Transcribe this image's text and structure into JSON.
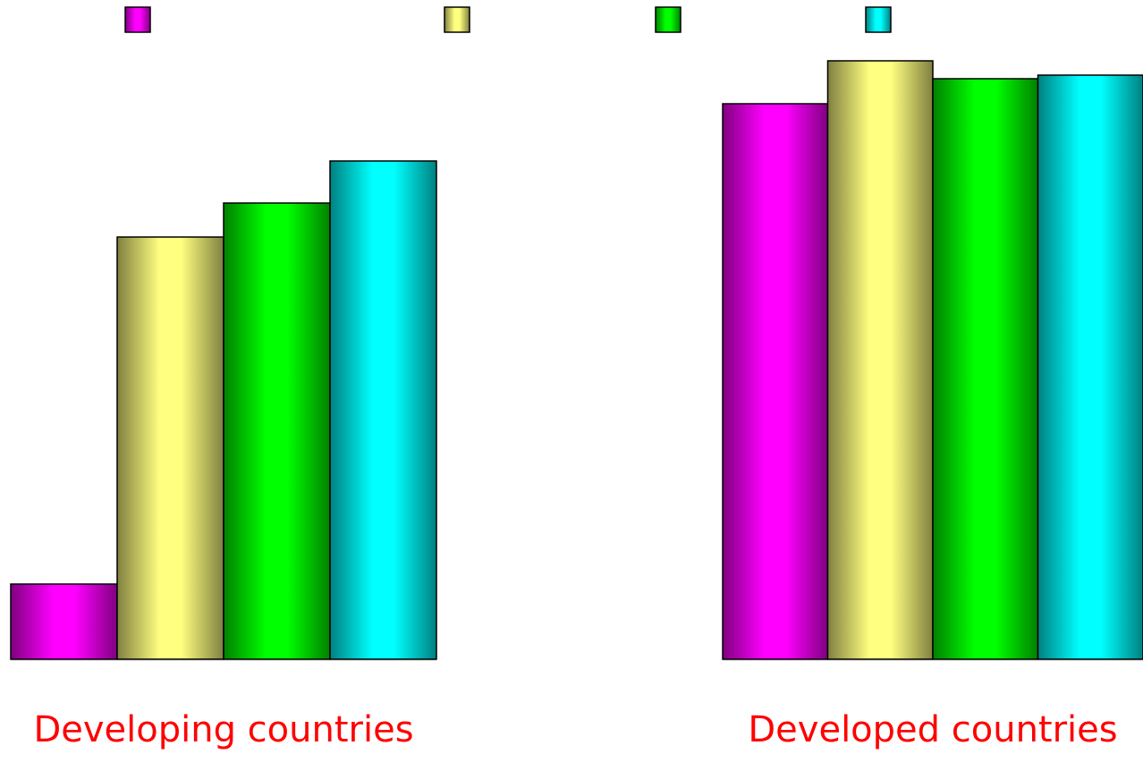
{
  "chart_data": {
    "type": "bar",
    "categories": [
      "Developing countries",
      "Developed countries"
    ],
    "series": [
      {
        "color": "#ff00ff",
        "values": [
          84,
          621
        ]
      },
      {
        "color": "#ffff80",
        "values": [
          472,
          669
        ]
      },
      {
        "color": "#00ff00",
        "values": [
          510,
          649
        ]
      },
      {
        "color": "#00ffff",
        "values": [
          557,
          653
        ]
      }
    ],
    "ylim": [
      0,
      700
    ],
    "grid": false
  }
}
